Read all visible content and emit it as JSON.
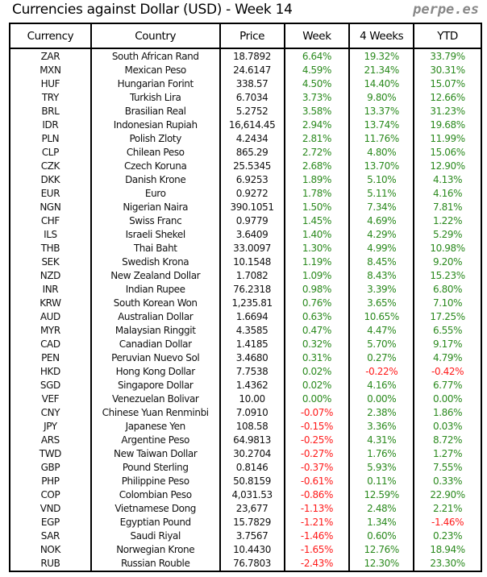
{
  "title": "Currencies against Dollar (USD) - Week 14",
  "brand": "perpe.es",
  "colors": {
    "positive": "#2b8a1e",
    "negative": "#ff1a1a"
  },
  "columns": [
    "Currency",
    "Country",
    "Price",
    "Week",
    "4 Weeks",
    "YTD"
  ],
  "rows": [
    [
      "ZAR",
      "South African Rand",
      "18.7892",
      "6.64%",
      "19.32%",
      "33.79%"
    ],
    [
      "MXN",
      "Mexican Peso",
      "24.6147",
      "4.59%",
      "21.34%",
      "30.31%"
    ],
    [
      "HUF",
      "Hungarian Forint",
      "338.57",
      "4.50%",
      "14.40%",
      "15.07%"
    ],
    [
      "TRY",
      "Turkish Lira",
      "6.7034",
      "3.73%",
      "9.80%",
      "12.66%"
    ],
    [
      "BRL",
      "Brasilian Real",
      "5.2752",
      "3.58%",
      "13.37%",
      "31.23%"
    ],
    [
      "IDR",
      "Indonesian Rupiah",
      "16,614.45",
      "2.94%",
      "13.74%",
      "19.68%"
    ],
    [
      "PLN",
      "Polish Zloty",
      "4.2434",
      "2.81%",
      "11.76%",
      "11.99%"
    ],
    [
      "CLP",
      "Chilean Peso",
      "865.29",
      "2.72%",
      "4.80%",
      "15.06%"
    ],
    [
      "CZK",
      "Czech Koruna",
      "25.5345",
      "2.68%",
      "13.70%",
      "12.90%"
    ],
    [
      "DKK",
      "Danish Krone",
      "6.9253",
      "1.89%",
      "5.10%",
      "4.13%"
    ],
    [
      "EUR",
      "Euro",
      "0.9272",
      "1.78%",
      "5.11%",
      "4.16%"
    ],
    [
      "NGN",
      "Nigerian Naira",
      "390.1051",
      "1.50%",
      "7.34%",
      "7.81%"
    ],
    [
      "CHF",
      "Swiss Franc",
      "0.9779",
      "1.45%",
      "4.69%",
      "1.22%"
    ],
    [
      "ILS",
      "Israeli Shekel",
      "3.6409",
      "1.40%",
      "4.29%",
      "5.29%"
    ],
    [
      "THB",
      "Thai Baht",
      "33.0097",
      "1.30%",
      "4.99%",
      "10.98%"
    ],
    [
      "SEK",
      "Swedish Krona",
      "10.1548",
      "1.19%",
      "8.45%",
      "9.20%"
    ],
    [
      "NZD",
      "New Zealand Dollar",
      "1.7082",
      "1.09%",
      "8.43%",
      "15.23%"
    ],
    [
      "INR",
      "Indian Rupee",
      "76.2318",
      "0.98%",
      "3.39%",
      "6.80%"
    ],
    [
      "KRW",
      "South Korean Won",
      "1,235.81",
      "0.76%",
      "3.65%",
      "7.10%"
    ],
    [
      "AUD",
      "Australian Dollar",
      "1.6694",
      "0.63%",
      "10.65%",
      "17.25%"
    ],
    [
      "MYR",
      "Malaysian Ringgit",
      "4.3585",
      "0.47%",
      "4.47%",
      "6.55%"
    ],
    [
      "CAD",
      "Canadian Dollar",
      "1.4185",
      "0.32%",
      "5.70%",
      "9.17%"
    ],
    [
      "PEN",
      "Peruvian Nuevo Sol",
      "3.4680",
      "0.31%",
      "0.27%",
      "4.79%"
    ],
    [
      "HKD",
      "Hong Kong Dollar",
      "7.7538",
      "0.02%",
      "-0.22%",
      "-0.42%"
    ],
    [
      "SGD",
      "Singapore Dollar",
      "1.4362",
      "0.02%",
      "4.16%",
      "6.77%"
    ],
    [
      "VEF",
      "Venezuelan Bolivar",
      "10.00",
      "0.00%",
      "0.00%",
      "0.00%"
    ],
    [
      "CNY",
      "Chinese Yuan Renminbi",
      "7.0910",
      "-0.07%",
      "2.38%",
      "1.86%"
    ],
    [
      "JPY",
      "Japanese Yen",
      "108.58",
      "-0.15%",
      "3.36%",
      "0.03%"
    ],
    [
      "ARS",
      "Argentine Peso",
      "64.9813",
      "-0.25%",
      "4.31%",
      "8.72%"
    ],
    [
      "TWD",
      "New Taiwan Dollar",
      "30.2704",
      "-0.27%",
      "1.76%",
      "1.27%"
    ],
    [
      "GBP",
      "Pound Sterling",
      "0.8146",
      "-0.37%",
      "5.93%",
      "7.55%"
    ],
    [
      "PHP",
      "Philippine Peso",
      "50.8159",
      "-0.61%",
      "0.11%",
      "0.33%"
    ],
    [
      "COP",
      "Colombian Peso",
      "4,031.53",
      "-0.86%",
      "12.59%",
      "22.90%"
    ],
    [
      "VND",
      "Vietnamese Dong",
      "23,677",
      "-1.13%",
      "2.48%",
      "2.21%"
    ],
    [
      "EGP",
      "Egyptian Pound",
      "15.7829",
      "-1.21%",
      "1.34%",
      "-1.46%"
    ],
    [
      "SAR",
      "Saudi Riyal",
      "3.7567",
      "-1.46%",
      "0.60%",
      "0.23%"
    ],
    [
      "NOK",
      "Norwegian Krone",
      "10.4430",
      "-1.65%",
      "12.76%",
      "18.94%"
    ],
    [
      "RUB",
      "Russian Rouble",
      "76.7803",
      "-2.43%",
      "12.30%",
      "23.30%"
    ]
  ]
}
